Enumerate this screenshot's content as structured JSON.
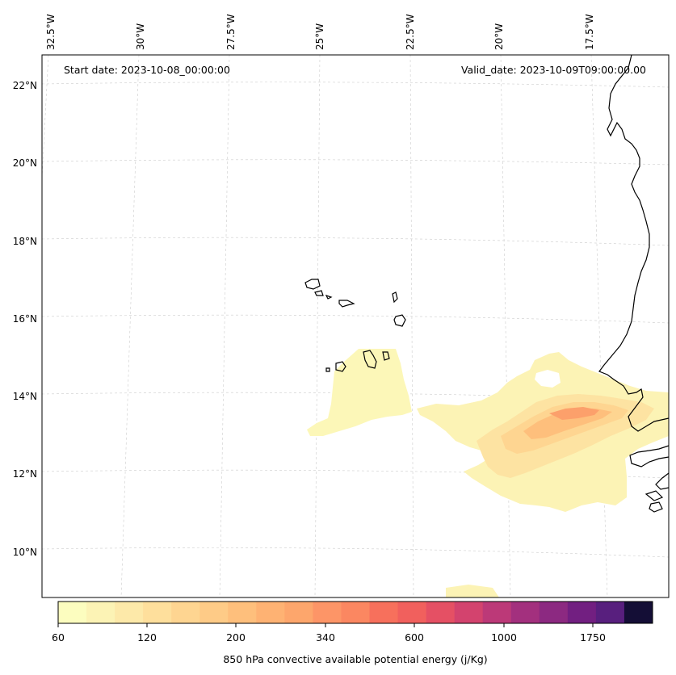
{
  "map": {
    "start_date": "Start date: 2023-10-08_00:00:00",
    "valid_date": "Valid_date: 2023-10-09T09:00:00.00",
    "lon_labels": [
      "32.5°W",
      "30°W",
      "27.5°W",
      "25°W",
      "22.5°W",
      "20°W",
      "17.5°W"
    ],
    "lat_labels": [
      "22°N",
      "20°N",
      "18°N",
      "16°N",
      "14°N",
      "12°N",
      "10°N"
    ],
    "field": "850 hPa convective available potential energy",
    "coastline_color": "#000000",
    "gridline_color": "#cccccc"
  },
  "colorbar": {
    "label": "850 hPa convective available potential energy (j/Kg)",
    "tick_labels": [
      "60",
      "120",
      "200",
      "340",
      "600",
      "1000",
      "1750"
    ],
    "colors": [
      "#fcfdbf",
      "#fcf3b5",
      "#fde9a9",
      "#fedf9c",
      "#fed591",
      "#fecb87",
      "#febf7c",
      "#feb273",
      "#fda66c",
      "#fd9567",
      "#fb8761",
      "#f7705c",
      "#f1605d",
      "#e55064",
      "#d3436e",
      "#bc3978",
      "#a3307e",
      "#8c2981",
      "#721f81",
      "#581f7e",
      "#140e36"
    ]
  }
}
